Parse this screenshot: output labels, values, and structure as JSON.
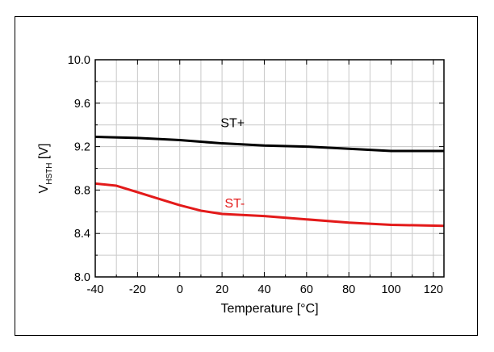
{
  "chart_data": {
    "type": "line",
    "xlabel": "Temperature [°C]",
    "ylabel_main": "V",
    "ylabel_sub": "HSTH",
    "ylabel_unit": " [V]",
    "xlim": [
      -40,
      125
    ],
    "ylim": [
      8.0,
      10.0
    ],
    "x_ticks": [
      -40,
      -20,
      0,
      20,
      40,
      60,
      80,
      100,
      120
    ],
    "x_tick_labels": [
      "-40",
      "-20",
      "0",
      "20",
      "40",
      "60",
      "80",
      "100",
      "120"
    ],
    "y_ticks": [
      8.0,
      8.4,
      8.8,
      9.2,
      9.6,
      10.0
    ],
    "y_tick_labels": [
      "8.0",
      "8.4",
      "8.8",
      "9.2",
      "9.6",
      "10.0"
    ],
    "grid": true,
    "series": [
      {
        "name": "ST+",
        "color": "#000000",
        "x": [
          -40,
          -20,
          0,
          20,
          40,
          60,
          80,
          90,
          100,
          125
        ],
        "values": [
          9.29,
          9.28,
          9.26,
          9.23,
          9.21,
          9.2,
          9.18,
          9.17,
          9.16,
          9.16
        ]
      },
      {
        "name": "ST-",
        "color": "#e31a1a",
        "x": [
          -40,
          -30,
          -20,
          -10,
          0,
          10,
          20,
          40,
          60,
          80,
          100,
          125
        ],
        "values": [
          8.86,
          8.84,
          8.78,
          8.72,
          8.66,
          8.61,
          8.58,
          8.56,
          8.53,
          8.5,
          8.48,
          8.47
        ]
      }
    ]
  }
}
